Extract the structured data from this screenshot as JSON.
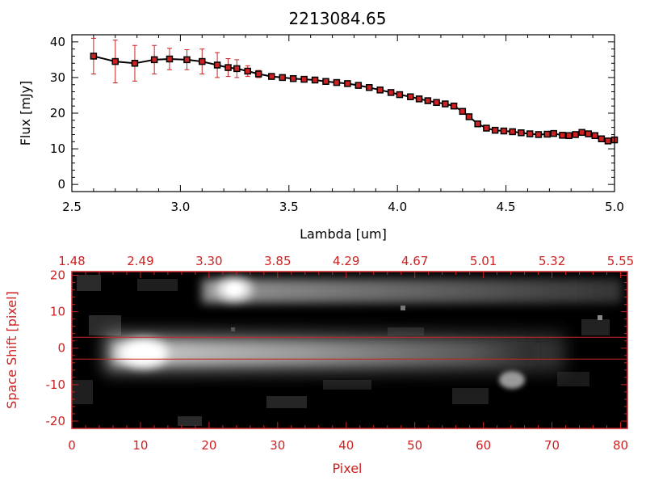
{
  "chart_data": [
    {
      "type": "line",
      "title": "2213084.65",
      "xlabel": "Lambda [um]",
      "ylabel": "Flux [mJy]",
      "xlim": [
        2.5,
        5.0
      ],
      "ylim": [
        -2,
        42
      ],
      "xticks": [
        "2.5",
        "3.0",
        "3.5",
        "4.0",
        "4.5",
        "5.0"
      ],
      "yticks": [
        "0",
        "10",
        "20",
        "30",
        "40"
      ],
      "grid": false,
      "line_color": "#000000",
      "marker_color": "#cc2222",
      "errorbar_color": "#cc2222",
      "series": [
        {
          "x": [
            2.6,
            2.7,
            2.79,
            2.88,
            2.95,
            3.03,
            3.1,
            3.17,
            3.22,
            3.26,
            3.31,
            3.36,
            3.42,
            3.47,
            3.52,
            3.57,
            3.62,
            3.67,
            3.72,
            3.77,
            3.82,
            3.87,
            3.92,
            3.97,
            4.01,
            4.06,
            4.1,
            4.14,
            4.18,
            4.22,
            4.26,
            4.3,
            4.33,
            4.37,
            4.41,
            4.45,
            4.49,
            4.53,
            4.57,
            4.61,
            4.65,
            4.69,
            4.72,
            4.76,
            4.79,
            4.82,
            4.85,
            4.88,
            4.91,
            4.94,
            4.97,
            5.0
          ],
          "y": [
            36.0,
            34.5,
            34.0,
            35.0,
            35.2,
            35.0,
            34.5,
            33.5,
            32.8,
            32.5,
            31.8,
            31.0,
            30.3,
            30.0,
            29.7,
            29.5,
            29.3,
            28.9,
            28.6,
            28.3,
            27.8,
            27.2,
            26.5,
            25.8,
            25.2,
            24.6,
            24.0,
            23.5,
            23.0,
            22.6,
            22.0,
            20.5,
            19.0,
            17.0,
            15.8,
            15.2,
            15.0,
            14.8,
            14.5,
            14.2,
            14.0,
            14.1,
            14.3,
            13.8,
            13.7,
            14.0,
            14.6,
            14.2,
            13.7,
            12.8,
            12.2,
            12.5
          ],
          "err": [
            5.0,
            6.0,
            5.0,
            4.0,
            3.0,
            2.8,
            3.5,
            3.5,
            2.5,
            2.5,
            1.5,
            1.0,
            0.5,
            0.5,
            0.5,
            0.5,
            0.5,
            0.5,
            0.5,
            0.5,
            0.5,
            0.5,
            0.5,
            0.5,
            0.5,
            0.5,
            0.5,
            0.5,
            0.5,
            0.5,
            0.5,
            0.5,
            0.5,
            0.5,
            0.5,
            0.5,
            0.5,
            0.5,
            0.5,
            0.5,
            0.5,
            0.5,
            0.5,
            0.5,
            0.5,
            0.5,
            0.5,
            0.5,
            0.5,
            0.5,
            0.5,
            0.5
          ]
        }
      ]
    },
    {
      "type": "heatmap",
      "title": "",
      "xlabel": "Pixel",
      "ylabel": "Space Shift [pixel]",
      "xlim": [
        0,
        81
      ],
      "ylim": [
        -22,
        21
      ],
      "xticks": [
        "0",
        "10",
        "20",
        "30",
        "40",
        "50",
        "60",
        "70",
        "80"
      ],
      "yticks": [
        "-20",
        "-10",
        "0",
        "10",
        "20"
      ],
      "top_axis_labels": [
        "1.48",
        "2.49",
        "3.30",
        "3.85",
        "4.29",
        "4.67",
        "5.01",
        "5.32",
        "5.55"
      ],
      "extraction_window": [
        -3,
        3
      ],
      "colormap": "grayscale",
      "frame_color": "#cc2222",
      "sources": [
        {
          "peak_x": 10,
          "y": 0,
          "tail_to_x": 70
        },
        {
          "peak_x": 24,
          "y": 16,
          "tail_to_x": 78
        },
        {
          "peak_x": 65,
          "y": -7,
          "tail_to_x": 66
        }
      ]
    }
  ]
}
